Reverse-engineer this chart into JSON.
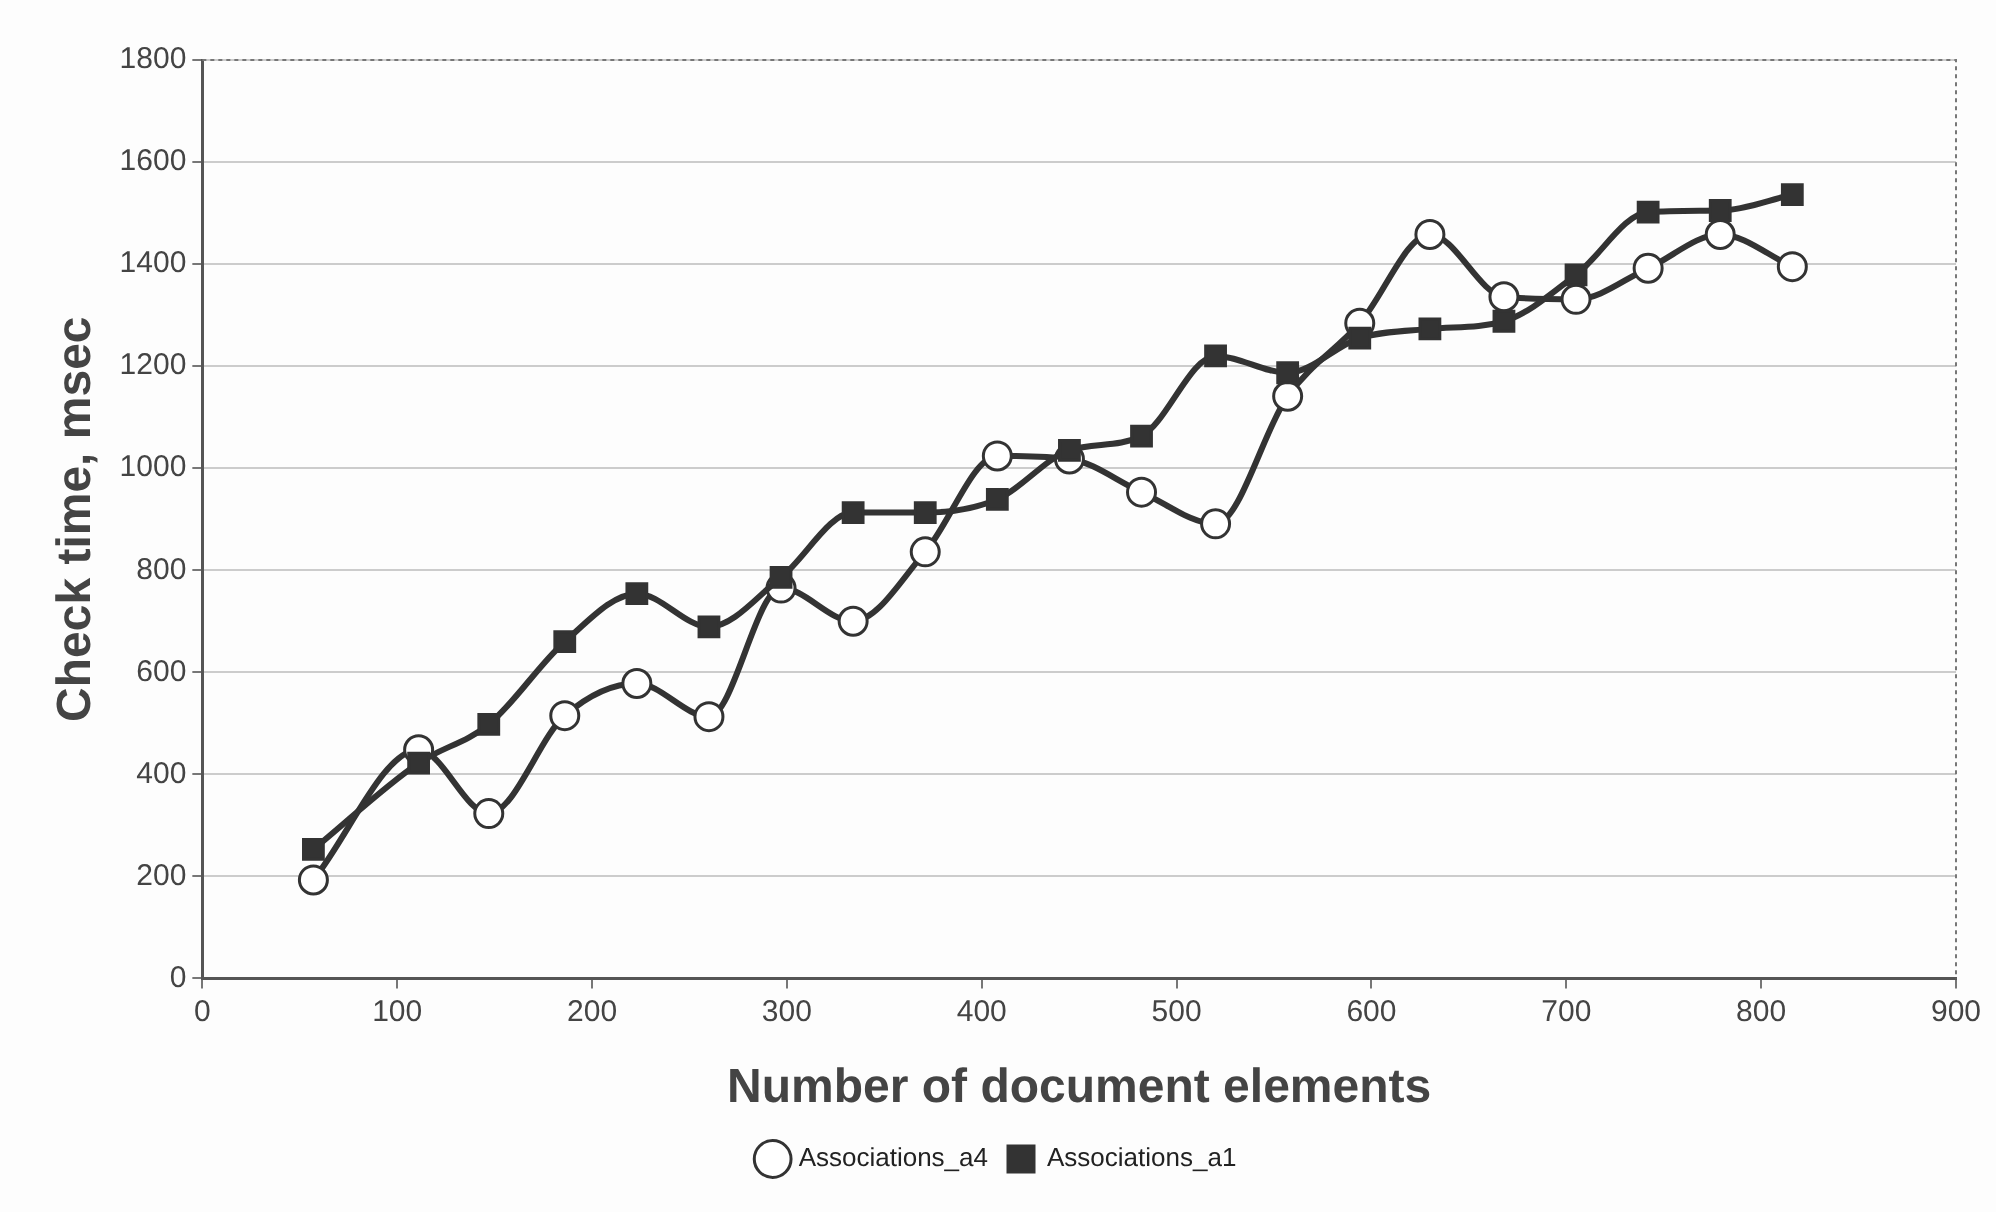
{
  "chart_data": {
    "type": "line",
    "xlabel": "Number of document elements",
    "ylabel": "Check time, msec",
    "xlim": [
      0,
      900
    ],
    "xticks": [
      0,
      100,
      200,
      300,
      400,
      500,
      600,
      700,
      800,
      900
    ],
    "ylim": [
      0,
      1800
    ],
    "yticks": [
      0,
      200,
      400,
      600,
      800,
      1000,
      1200,
      1400,
      1600,
      1800
    ],
    "grid": "y",
    "legend": "bottom",
    "series": [
      {
        "name": "Associations_a4",
        "color": "#333333",
        "marker": "circle",
        "x": [
          57,
          111,
          147,
          186,
          223,
          260,
          297,
          334,
          371,
          408,
          445,
          482,
          520,
          557,
          594,
          630,
          668,
          705,
          742,
          779,
          816
        ],
        "values": [
          193,
          448,
          323,
          515,
          578,
          513,
          765,
          700,
          836,
          1024,
          1018,
          953,
          891,
          1141,
          1284,
          1458,
          1336,
          1331,
          1392,
          1458,
          1395
        ]
      },
      {
        "name": "Associations_a1",
        "color": "#333333",
        "marker": "square",
        "x": [
          57,
          111,
          147,
          186,
          223,
          260,
          297,
          334,
          371,
          408,
          445,
          482,
          520,
          557,
          594,
          630,
          668,
          705,
          742,
          779,
          816
        ],
        "values": [
          253,
          422,
          498,
          660,
          754,
          689,
          786,
          913,
          913,
          939,
          1035,
          1063,
          1220,
          1187,
          1255,
          1273,
          1288,
          1379,
          1502,
          1505,
          1536
        ]
      }
    ]
  }
}
